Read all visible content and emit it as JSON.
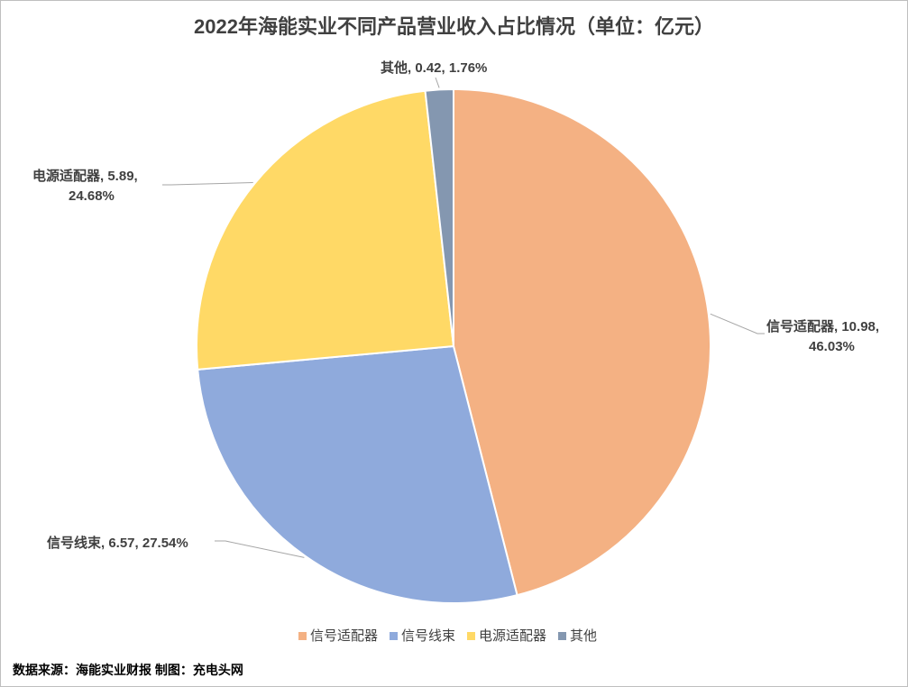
{
  "chart_data": {
    "type": "pie",
    "title": "2022年海能实业不同产品营业收入占比情况（单位：亿元）",
    "slices": [
      {
        "label": "信号适配器",
        "value": 10.98,
        "percent": "46.03%",
        "color": "#F4B183"
      },
      {
        "label": "信号线束",
        "value": 6.57,
        "percent": "27.54%",
        "color": "#8FAADC"
      },
      {
        "label": "电源适配器",
        "value": 5.89,
        "percent": "24.68%",
        "color": "#FFD966"
      },
      {
        "label": "其他",
        "value": 0.42,
        "percent": "1.76%",
        "color": "#8497B0"
      }
    ],
    "data_labels": [
      {
        "lines": [
          "信号适配器, 10.98,",
          "46.03%"
        ]
      },
      {
        "lines": [
          "信号线束, 6.57, 27.54%"
        ]
      },
      {
        "lines": [
          "电源适配器, 5.89,",
          "24.68%"
        ]
      },
      {
        "lines": [
          "其他, 0.42, 1.76%"
        ]
      }
    ],
    "legend": [
      "信号适配器",
      "信号线束",
      "电源适配器",
      "其他"
    ],
    "legend_position": "bottom"
  },
  "source_note": "数据来源：海能实业财报 制图：充电头网"
}
